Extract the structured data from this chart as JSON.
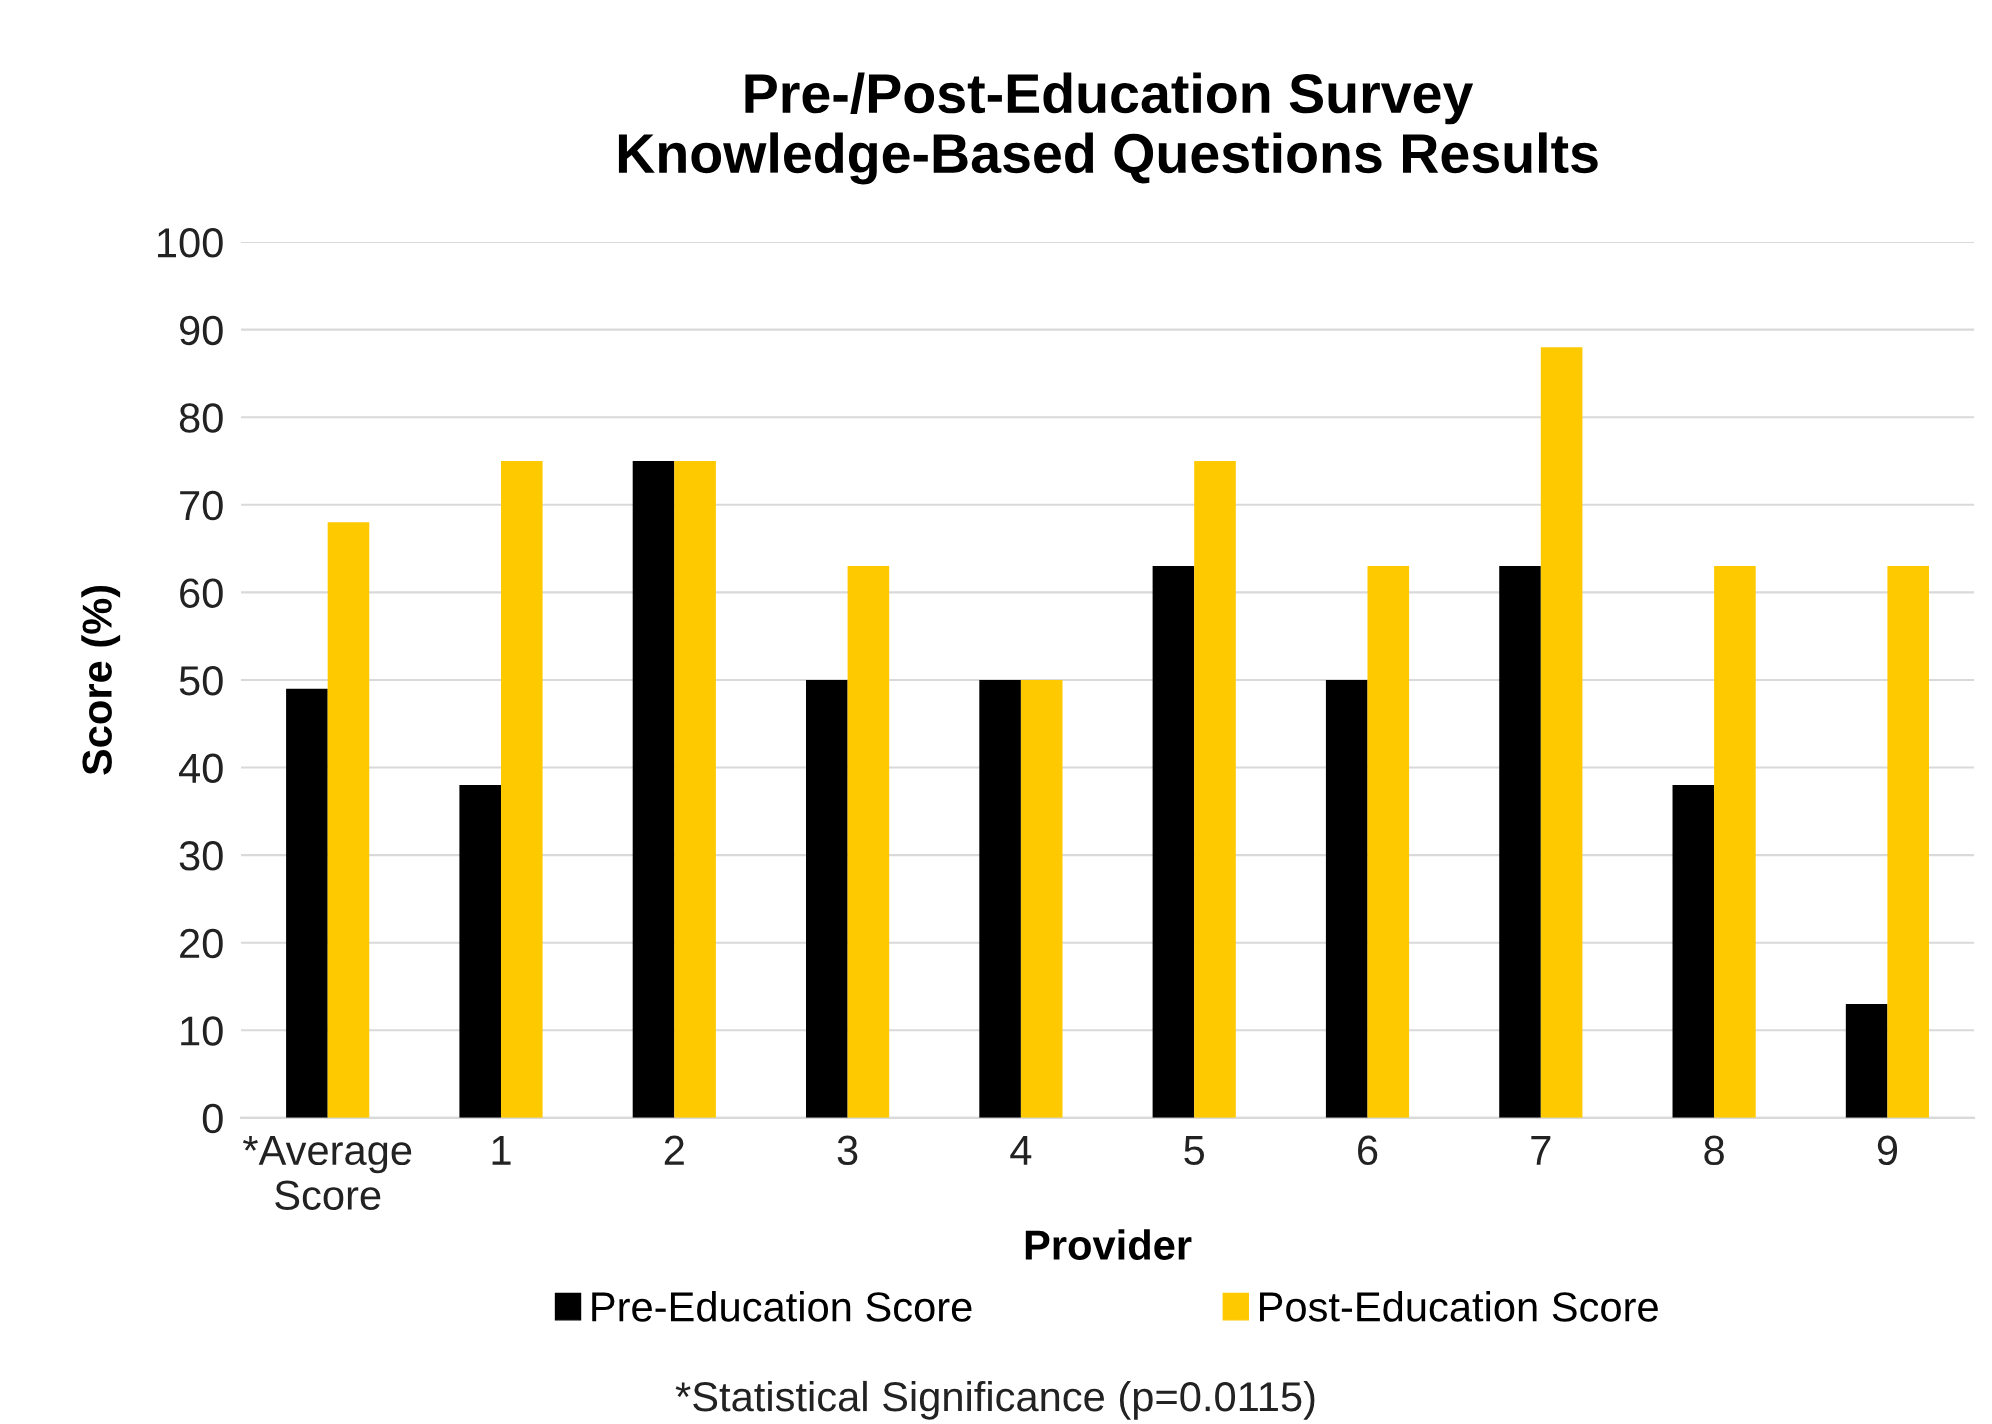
{
  "chart_data": {
    "type": "bar",
    "title": "Pre-/Post-Education Survey\nKnowledge-Based Questions Results",
    "xlabel": "Provider",
    "ylabel": "Score (%)",
    "categories": [
      "*Average\nScore",
      "1",
      "2",
      "3",
      "4",
      "5",
      "6",
      "7",
      "8",
      "9"
    ],
    "series": [
      {
        "name": "Pre-Education Score",
        "color": "#000000",
        "values": [
          49,
          38,
          75,
          50,
          50,
          63,
          50,
          63,
          38,
          13
        ]
      },
      {
        "name": "Post-Education Score",
        "color": "#ffc900",
        "values": [
          68,
          75,
          75,
          63,
          50,
          75,
          63,
          88,
          63,
          63
        ]
      }
    ],
    "ylim": [
      0,
      100
    ],
    "yticks": [
      0,
      10,
      20,
      30,
      40,
      50,
      60,
      70,
      80,
      90,
      100
    ],
    "grid": "y",
    "legend": "bottom",
    "annotations": [
      "*Statistical Significance (p=0.0115)"
    ]
  }
}
